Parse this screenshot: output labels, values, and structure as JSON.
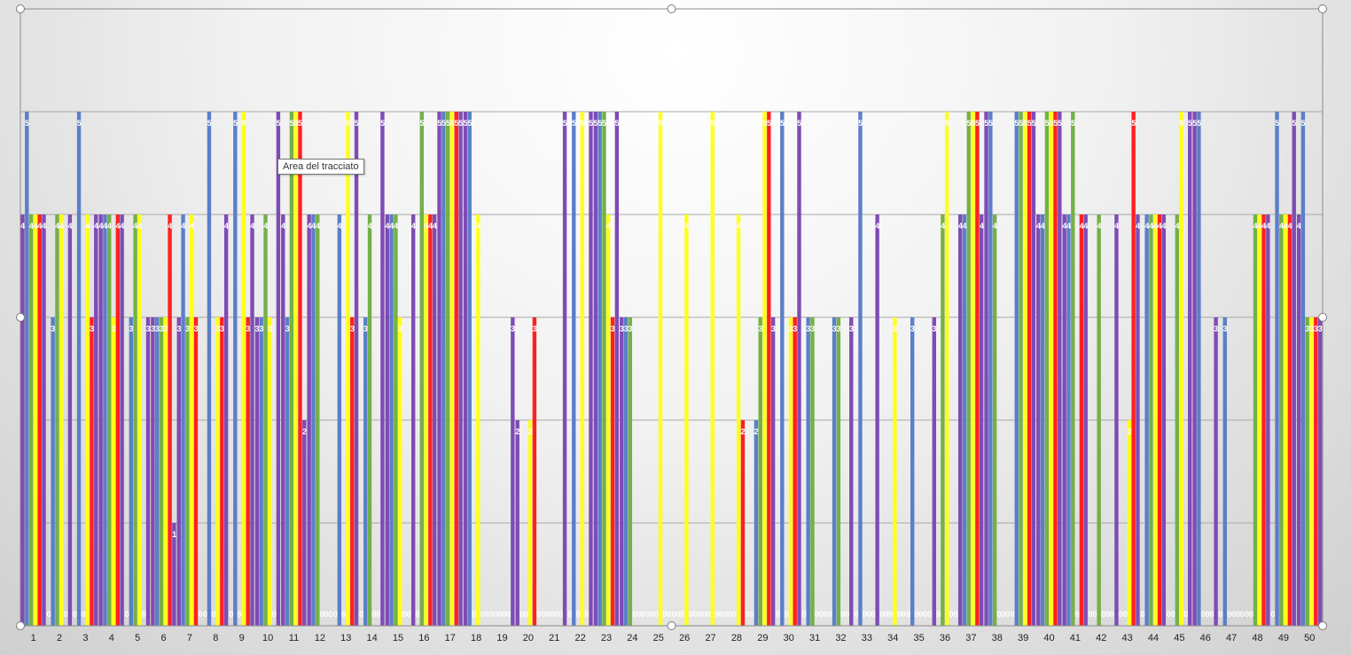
{
  "tooltip": "Area del tracciato",
  "chart_data": {
    "type": "bar",
    "ylim": [
      0,
      6
    ],
    "grid": true,
    "data_labels": true,
    "colors": [
      "#7f4bb5",
      "#5b7fc7",
      "#74b047",
      "#ffff1a",
      "#ff2020"
    ],
    "categories": [
      "1",
      "2",
      "3",
      "4",
      "5",
      "6",
      "7",
      "8",
      "9",
      "10",
      "11",
      "12",
      "13",
      "14",
      "15",
      "16",
      "17",
      "18",
      "19",
      "20",
      "21",
      "22",
      "23",
      "24",
      "25",
      "26",
      "27",
      "28",
      "29",
      "30",
      "31",
      "32",
      "33",
      "34",
      "35",
      "36",
      "37",
      "38",
      "39",
      "40",
      "41",
      "42",
      "43",
      "44",
      "45",
      "46",
      "47",
      "48",
      "49",
      "50"
    ],
    "values": [
      [
        4,
        5,
        4,
        4,
        4,
        4
      ],
      [
        0,
        3,
        4,
        4,
        0,
        4
      ],
      [
        0,
        5,
        0,
        4,
        3,
        4
      ],
      [
        4,
        4,
        4,
        3,
        4,
        4
      ],
      [
        0,
        3,
        4,
        4,
        0,
        3
      ],
      [
        3,
        3,
        3,
        3,
        4,
        1
      ],
      [
        3,
        4,
        3,
        4,
        3,
        0
      ],
      [
        0,
        5,
        0,
        3,
        3,
        4
      ],
      [
        0,
        5,
        0,
        5,
        3,
        4
      ],
      [
        3,
        3,
        4,
        3,
        0,
        5
      ],
      [
        4,
        3,
        5,
        5,
        5,
        2
      ],
      [
        4,
        4,
        4,
        0,
        0,
        0
      ],
      [
        0,
        4,
        0,
        5,
        3,
        5
      ],
      [
        0,
        3,
        4,
        0,
        0,
        5
      ],
      [
        4,
        4,
        4,
        3,
        0,
        0
      ],
      [
        4,
        0,
        5,
        4,
        4,
        4
      ],
      [
        5,
        5,
        5,
        5,
        5,
        5
      ],
      [
        5,
        5,
        0,
        4,
        0,
        0
      ],
      [
        0,
        0,
        0,
        0,
        0,
        3
      ],
      [
        2,
        0,
        0,
        2,
        3,
        0
      ],
      [
        0,
        0,
        0,
        0,
        0,
        5
      ],
      [
        0,
        5,
        0,
        5,
        0,
        5
      ],
      [
        5,
        5,
        5,
        4,
        3,
        5
      ],
      [
        3,
        3,
        3,
        0,
        0,
        0
      ],
      [
        0,
        0,
        0,
        5,
        0,
        0
      ],
      [
        0,
        0,
        0,
        4,
        0,
        0
      ],
      [
        0,
        0,
        0,
        5,
        0,
        0
      ],
      [
        0,
        0,
        0,
        4,
        2,
        0
      ],
      [
        0,
        2,
        3,
        5,
        5,
        3
      ],
      [
        0,
        5,
        0,
        3,
        3,
        5
      ],
      [
        0,
        3,
        3,
        0,
        0,
        0
      ],
      [
        0,
        3,
        3,
        0,
        0,
        3
      ],
      [
        0,
        5,
        0,
        0,
        0,
        4
      ],
      [
        0,
        0,
        0,
        3,
        0,
        0
      ],
      [
        0,
        3,
        0,
        0,
        0,
        0
      ],
      [
        3,
        0,
        4,
        5,
        0,
        0
      ],
      [
        4,
        4,
        5,
        5,
        5,
        4
      ],
      [
        5,
        5,
        4,
        0,
        0,
        0
      ],
      [
        0,
        5,
        5,
        5,
        5,
        5
      ],
      [
        4,
        4,
        5,
        5,
        5,
        5
      ],
      [
        4,
        4,
        5,
        0,
        4,
        4
      ],
      [
        0,
        0,
        4,
        0,
        0,
        0
      ],
      [
        4,
        0,
        0,
        2,
        5,
        4
      ],
      [
        0,
        4,
        4,
        4,
        4,
        4
      ],
      [
        0,
        0,
        4,
        5,
        0,
        5
      ],
      [
        5,
        5,
        0,
        0,
        0,
        3
      ],
      [
        0,
        3,
        0,
        0,
        0,
        0
      ],
      [
        0,
        0,
        4,
        4,
        4,
        4
      ],
      [
        0,
        5,
        4,
        4,
        4,
        5
      ],
      [
        4,
        5,
        3,
        3,
        3,
        3
      ]
    ]
  }
}
